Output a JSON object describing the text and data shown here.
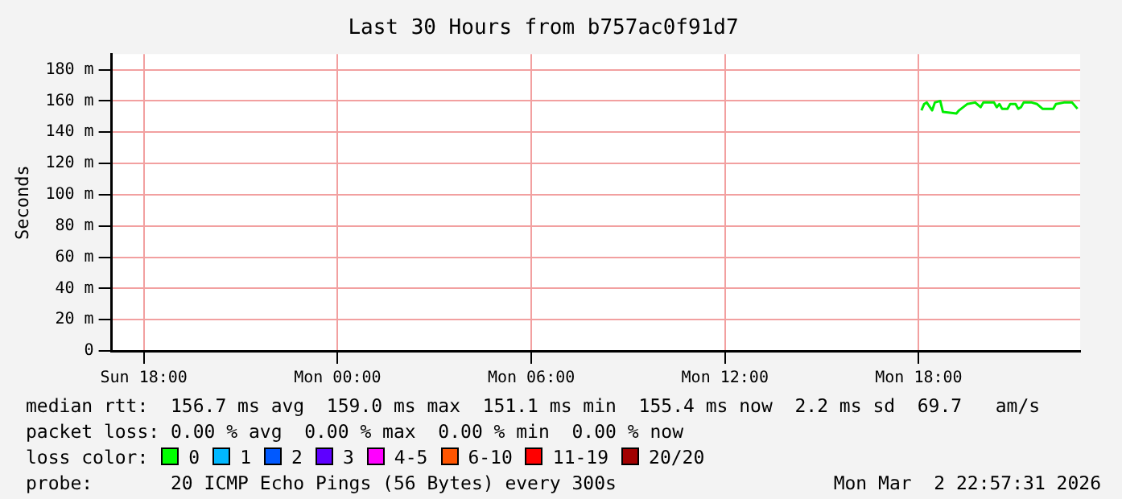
{
  "chart_data": {
    "type": "line",
    "title": "Last 30 Hours from b757ac0f91d7",
    "ylabel": "Seconds",
    "xlim": [
      "2026-03-01T17:00",
      "2026-03-02T23:00"
    ],
    "xticks": [
      {
        "value": "2026-03-01T18:00",
        "label": "Sun 18:00"
      },
      {
        "value": "2026-03-02T00:00",
        "label": "Mon 00:00"
      },
      {
        "value": "2026-03-02T06:00",
        "label": "Mon 06:00"
      },
      {
        "value": "2026-03-02T12:00",
        "label": "Mon 12:00"
      },
      {
        "value": "2026-03-02T18:00",
        "label": "Mon 18:00"
      }
    ],
    "ylim": [
      0,
      190
    ],
    "yticks": [
      0,
      {
        "value": 20,
        "label": "20 m"
      },
      {
        "value": 40,
        "label": "40 m"
      },
      {
        "value": 60,
        "label": "60 m"
      },
      {
        "value": 80,
        "label": "80 m"
      },
      {
        "value": 100,
        "label": "100 m"
      },
      {
        "value": 120,
        "label": "120 m"
      },
      {
        "value": 140,
        "label": "140 m"
      },
      {
        "value": 160,
        "label": "160 m"
      },
      {
        "value": 180,
        "label": "180 m"
      }
    ],
    "grid": true,
    "marker": "none",
    "series": [
      {
        "color": "#00ee00",
        "x": [
          "2026-03-02T18:05",
          "2026-03-02T18:10",
          "2026-03-02T18:15",
          "2026-03-02T18:25",
          "2026-03-02T18:30",
          "2026-03-02T18:40",
          "2026-03-02T18:45",
          "2026-03-02T19:10",
          "2026-03-02T19:15",
          "2026-03-02T19:30",
          "2026-03-02T19:45",
          "2026-03-02T19:55",
          "2026-03-02T20:00",
          "2026-03-02T20:20",
          "2026-03-02T20:25",
          "2026-03-02T20:30",
          "2026-03-02T20:35",
          "2026-03-02T20:45",
          "2026-03-02T20:50",
          "2026-03-02T21:00",
          "2026-03-02T21:05",
          "2026-03-02T21:10",
          "2026-03-02T21:15",
          "2026-03-02T21:30",
          "2026-03-02T21:40",
          "2026-03-02T21:50",
          "2026-03-02T22:10",
          "2026-03-02T22:15",
          "2026-03-02T22:30",
          "2026-03-02T22:45",
          "2026-03-02T22:55"
        ],
        "values": [
          154,
          158,
          159,
          154,
          159,
          160,
          153,
          152,
          154,
          158,
          159,
          156,
          159,
          159,
          156,
          158,
          155,
          155,
          158,
          158,
          155,
          156,
          159,
          159,
          158,
          155,
          155,
          158,
          159,
          159,
          155
        ]
      }
    ],
    "annotations": [
      "median rtt:  156.7 ms avg  159.0 ms max  151.1 ms min  155.4 ms now  2.2 ms sd  69.7   am/s",
      "packet loss: 0.00 % avg  0.00 % max  0.00 % min  0.00 % now",
      "loss color:",
      "0",
      "1",
      "2",
      "3",
      "4-5",
      "6-10",
      "11-19",
      "20/20",
      "probe:       20 ICMP Echo Pings (56 Bytes) every 300s",
      "Mon Mar  2 22:57:31 2026"
    ]
  }
}
